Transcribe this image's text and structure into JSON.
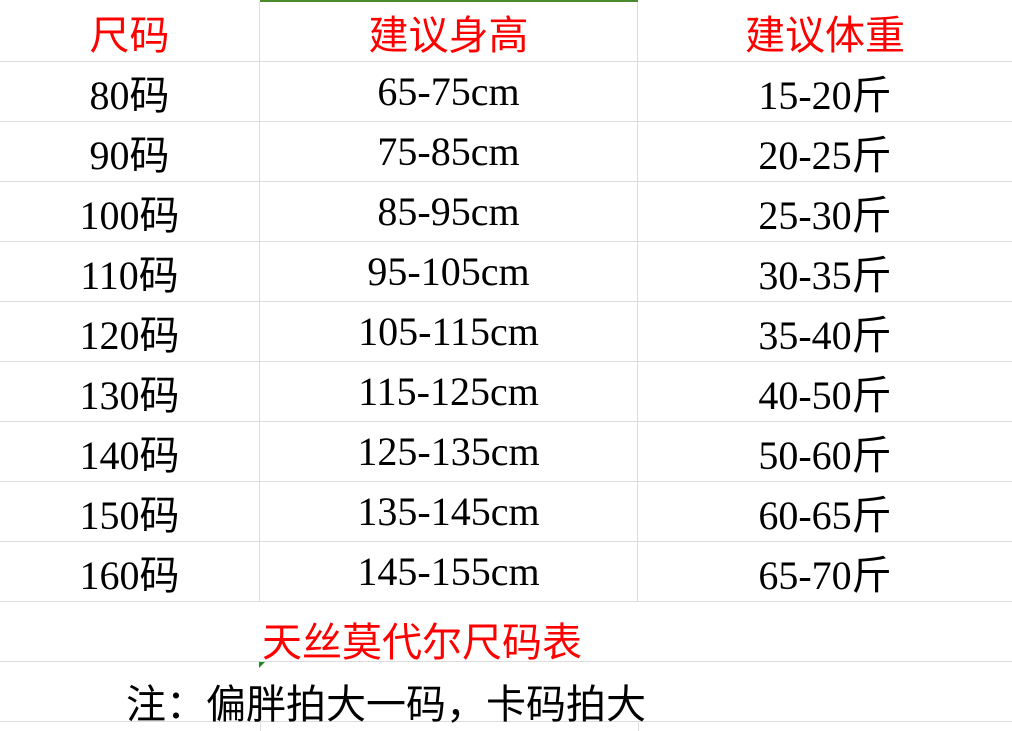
{
  "headers": [
    "尺码",
    "建议身高",
    "建议体重"
  ],
  "rows": [
    [
      "80码",
      "65-75cm",
      "15-20斤"
    ],
    [
      "90码",
      "75-85cm",
      "20-25斤"
    ],
    [
      "100码",
      "85-95cm",
      "25-30斤"
    ],
    [
      "110码",
      "95-105cm",
      "30-35斤"
    ],
    [
      "120码",
      "105-115cm",
      "35-40斤"
    ],
    [
      "130码",
      "115-125cm",
      "40-50斤"
    ],
    [
      "140码",
      "125-135cm",
      "50-60斤"
    ],
    [
      "150码",
      "135-145cm",
      "60-65斤"
    ],
    [
      "160码",
      "145-155cm",
      "65-70斤"
    ]
  ],
  "title": "天丝莫代尔尺码表",
  "note": "注：偏胖拍大一码，卡码拍大",
  "colors": {
    "header": "#ff0000",
    "title": "#ff0000",
    "selection_border": "#4a8a2a",
    "gridline": "#dcdcdc"
  }
}
